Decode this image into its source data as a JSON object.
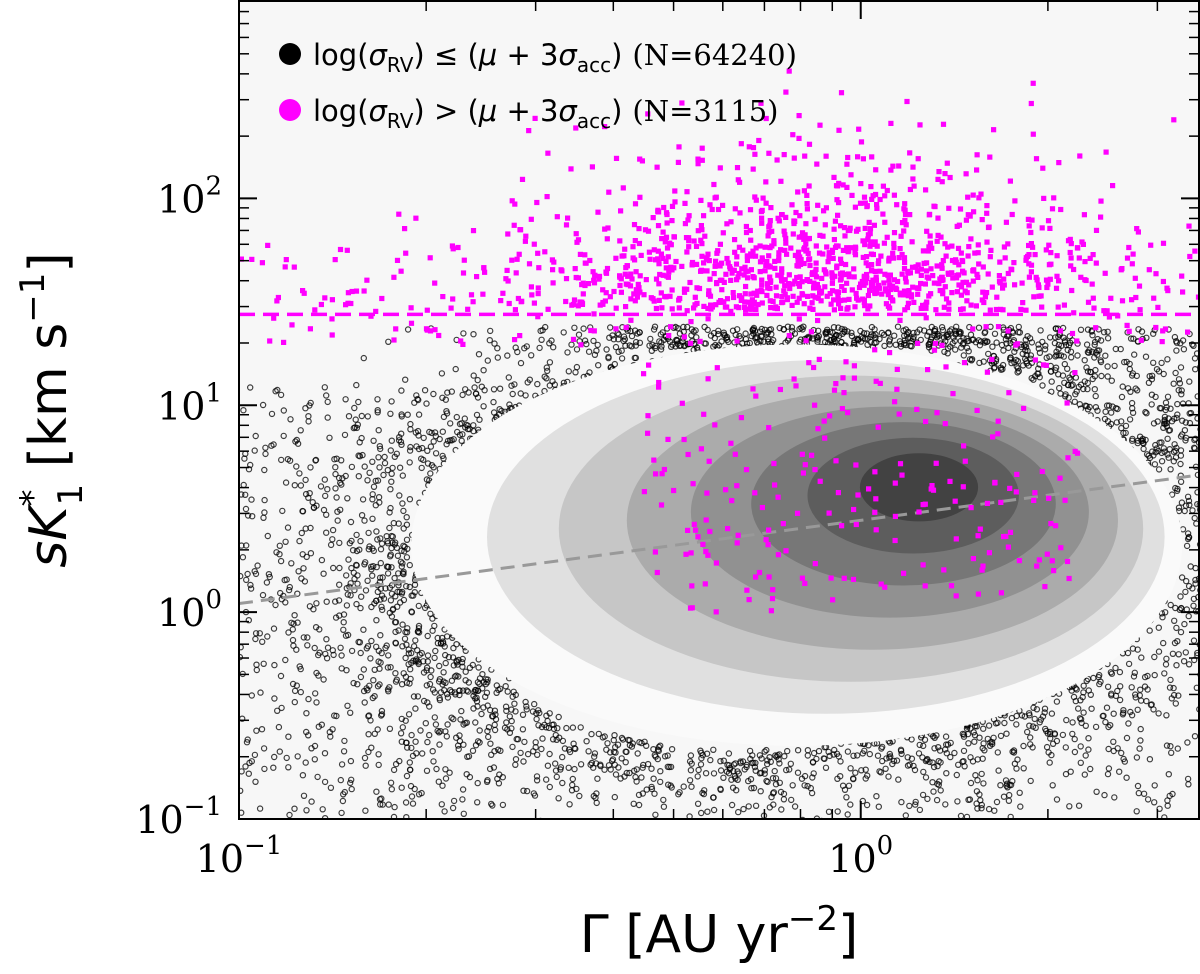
{
  "chart_data": {
    "type": "scatter",
    "xscale": "log",
    "yscale": "log",
    "xlim": [
      0.1,
      3.5
    ],
    "ylim": [
      0.1,
      900
    ],
    "x_ticks": [
      {
        "base": "10",
        "exp": "−1",
        "value": 0.1
      },
      {
        "base": "10",
        "exp": "0",
        "value": 1
      }
    ],
    "y_ticks": [
      {
        "base": "10",
        "exp": "−1",
        "value": 0.1
      },
      {
        "base": "10",
        "exp": "0",
        "value": 1
      },
      {
        "base": "10",
        "exp": "1",
        "value": 10
      },
      {
        "base": "10",
        "exp": "2",
        "value": 100
      }
    ],
    "xlabel": {
      "main": "Γ [AU yr",
      "sup": "−2",
      "end": "]"
    },
    "ylabel": {
      "s": "s",
      "k": "K",
      "sub": "1",
      "sup": "*",
      "units": " [km s",
      "units_sup": "−1",
      "end": "]"
    },
    "legend_position": "top-left",
    "series": [
      {
        "name": "log(σRV) ≤ (μ + 3σacc)",
        "legend": {
          "prefix": "log(",
          "sym": "σ",
          "sub": "RV",
          "mid": ") ≤ (",
          "mu": "μ",
          "plus": " + 3",
          "sym2": "σ",
          "sub2": "acc",
          "close": ")",
          "count": "(N=64240)"
        },
        "n": 64240,
        "color": "#000000",
        "marker": "open-circle"
      },
      {
        "name": "log(σRV) > (μ + 3σacc)",
        "legend": {
          "prefix": "log(",
          "sym": "σ",
          "sub": "RV",
          "mid": ") > (",
          "mu": "μ",
          "plus": " + 3",
          "sym2": "σ",
          "sub2": "acc",
          "close": ")",
          "count": "(N=3115)"
        },
        "n": 3115,
        "color": "#ff00ff",
        "marker": "square"
      }
    ],
    "density_contours": {
      "color": "grey",
      "levels": 8,
      "peak": {
        "x": 1.25,
        "y": 4.4
      }
    },
    "threshold_line": {
      "y": 27.5,
      "color": "#ff00ff",
      "style": "dashed"
    },
    "trend_line": {
      "x": [
        0.1,
        3.5
      ],
      "y": [
        1.1,
        4.6
      ],
      "color": "#999999",
      "style": "dashed"
    },
    "background": "#f7f7f7"
  }
}
